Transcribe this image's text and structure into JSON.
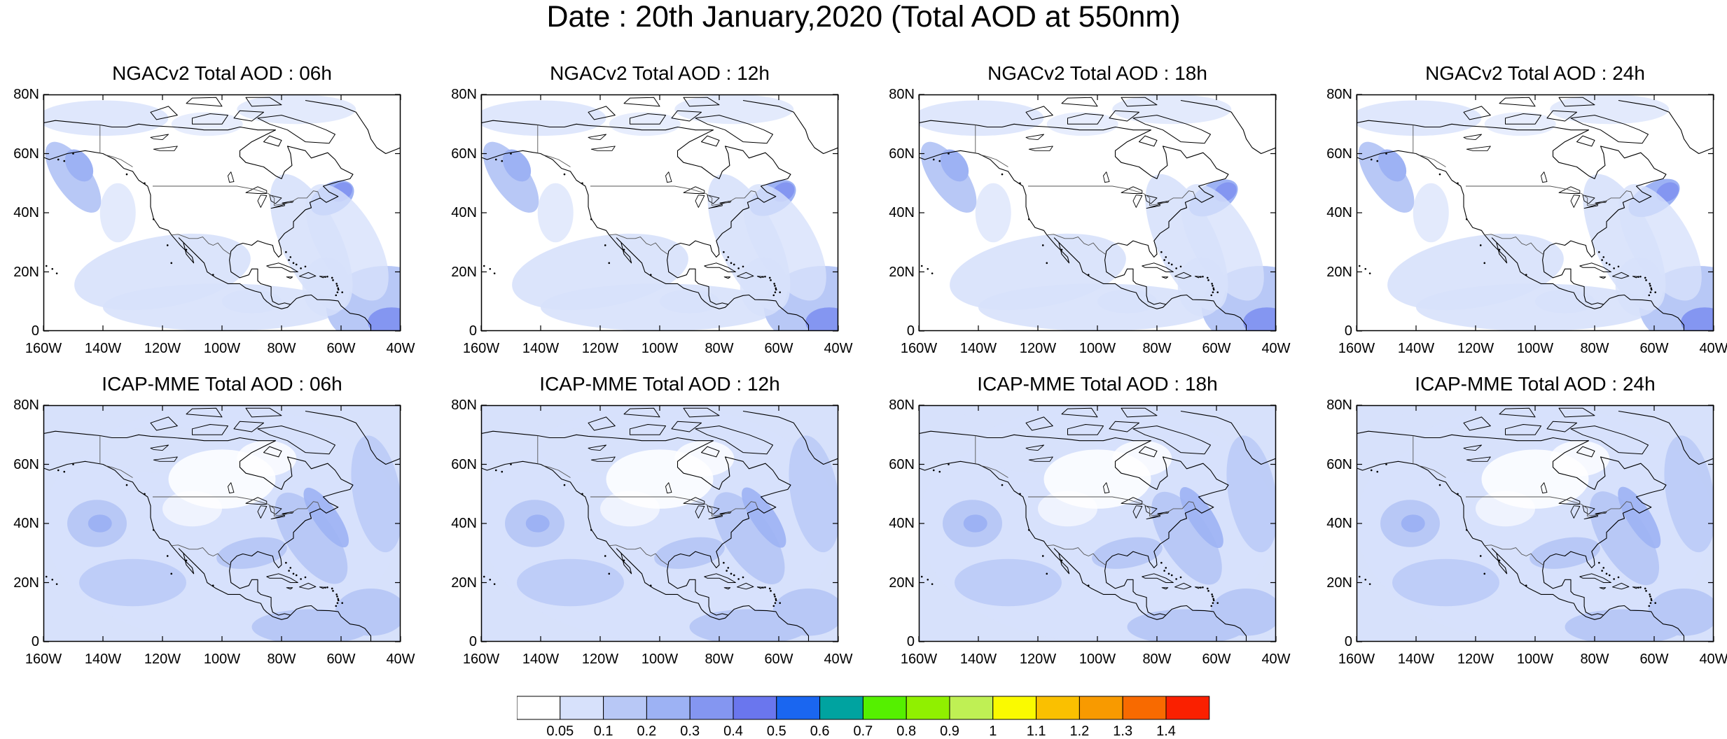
{
  "title": "Date : 20th January,2020 (Total AOD at 550nm)",
  "axes": {
    "lat_labels": [
      "80N",
      "60N",
      "40N",
      "20N",
      "0"
    ],
    "lat_values": [
      80,
      60,
      40,
      20,
      0
    ],
    "lon_labels": [
      "160W",
      "140W",
      "120W",
      "100W",
      "80W",
      "60W",
      "40W"
    ],
    "lon_values": [
      -160,
      -140,
      -120,
      -100,
      -80,
      -60,
      -40
    ]
  },
  "panels": [
    {
      "title": "NGACv2 Total AOD : 06h",
      "model": "NGACv2",
      "hour": "06h"
    },
    {
      "title": "NGACv2 Total AOD : 12h",
      "model": "NGACv2",
      "hour": "12h"
    },
    {
      "title": "NGACv2 Total AOD : 18h",
      "model": "NGACv2",
      "hour": "18h"
    },
    {
      "title": "NGACv2 Total AOD : 24h",
      "model": "NGACv2",
      "hour": "24h"
    },
    {
      "title": "ICAP-MME Total AOD : 06h",
      "model": "ICAP-MME",
      "hour": "06h"
    },
    {
      "title": "ICAP-MME Total AOD : 12h",
      "model": "ICAP-MME",
      "hour": "12h"
    },
    {
      "title": "ICAP-MME Total AOD : 18h",
      "model": "ICAP-MME",
      "hour": "18h"
    },
    {
      "title": "ICAP-MME Total AOD : 24h",
      "model": "ICAP-MME",
      "hour": "24h"
    }
  ],
  "colorbar": {
    "labels": [
      "0.05",
      "0.1",
      "0.2",
      "0.3",
      "0.4",
      "0.5",
      "0.6",
      "0.7",
      "0.8",
      "0.9",
      "1",
      "1.1",
      "1.2",
      "1.3",
      "1.4"
    ],
    "colors": [
      "#ffffff",
      "#d7e1fb",
      "#b8c8f6",
      "#9db2f4",
      "#8496f1",
      "#6a76ee",
      "#1a66f0",
      "#00a3a0",
      "#55f000",
      "#90f000",
      "#bff054",
      "#fafa00",
      "#fac000",
      "#f89a00",
      "#f86a00",
      "#fa2000"
    ]
  }
}
